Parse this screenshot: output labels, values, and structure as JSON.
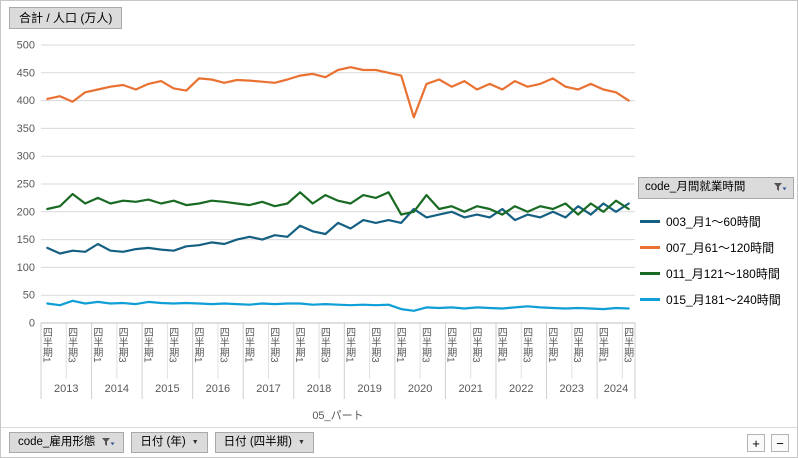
{
  "values_button_label": "合計 / 人口 (万人)",
  "icons": {
    "dropdown_arrow": "▼"
  },
  "legend": {
    "header_label": "code_月間就業時間",
    "items": [
      {
        "label": "003_月1～60時間",
        "color": "#156082"
      },
      {
        "label": "007_月61～120時間",
        "color": "#E97132"
      },
      {
        "label": "011_月121～180時間",
        "color": "#196B24"
      },
      {
        "label": "015_月181～240時間",
        "color": "#0F9ED5"
      }
    ]
  },
  "footer": {
    "field_button_label": "code_雇用形態",
    "year_button_label": "日付 (年)",
    "quarter_button_label": "日付 (四半期)",
    "expand_button_label": "+",
    "collapse_button_label": "−"
  },
  "chart_data": {
    "type": "line",
    "title": "合計 / 人口 (万人)",
    "xlabel": "05_パート",
    "ylabel": "",
    "ylim": [
      0,
      500
    ],
    "yticks": [
      0,
      50,
      100,
      150,
      200,
      250,
      300,
      350,
      400,
      450,
      500
    ],
    "grid": true,
    "legend_position": "right",
    "years": [
      2013,
      2014,
      2015,
      2016,
      2017,
      2018,
      2019,
      2020,
      2021,
      2022,
      2023,
      2024
    ],
    "quarters_per_year": [
      4,
      4,
      4,
      4,
      4,
      4,
      4,
      4,
      4,
      4,
      4,
      3
    ],
    "quarter_label_prefix": "四半期",
    "quarter_labels_shown": [
      1,
      3
    ],
    "series": [
      {
        "name": "003_月1～60時間",
        "color": "#156082",
        "values": [
          135,
          125,
          130,
          128,
          142,
          130,
          128,
          133,
          135,
          132,
          130,
          138,
          140,
          145,
          142,
          150,
          155,
          150,
          158,
          155,
          175,
          165,
          160,
          180,
          170,
          185,
          180,
          185,
          180,
          205,
          190,
          195,
          200,
          190,
          195,
          190,
          205,
          185,
          195,
          190,
          200,
          190,
          210,
          195,
          215,
          200,
          215
        ]
      },
      {
        "name": "007_月61～120時間",
        "color": "#E97132",
        "values": [
          403,
          408,
          398,
          415,
          420,
          425,
          428,
          420,
          430,
          435,
          422,
          418,
          440,
          438,
          432,
          437,
          436,
          434,
          432,
          438,
          445,
          448,
          442,
          455,
          460,
          455,
          455,
          450,
          445,
          370,
          430,
          438,
          425,
          435,
          420,
          430,
          420,
          435,
          425,
          430,
          440,
          425,
          420,
          430,
          420,
          415,
          400
        ]
      },
      {
        "name": "011_月121～180時間",
        "color": "#196B24",
        "values": [
          205,
          210,
          232,
          215,
          225,
          215,
          220,
          218,
          222,
          215,
          220,
          212,
          215,
          220,
          218,
          215,
          212,
          218,
          210,
          215,
          235,
          215,
          230,
          220,
          215,
          230,
          225,
          235,
          195,
          200,
          230,
          205,
          210,
          200,
          210,
          205,
          195,
          210,
          200,
          210,
          205,
          215,
          195,
          215,
          200,
          220,
          205
        ]
      },
      {
        "name": "015_月181～240時間",
        "color": "#0F9ED5",
        "values": [
          35,
          32,
          40,
          35,
          38,
          35,
          36,
          34,
          38,
          36,
          35,
          36,
          35,
          34,
          35,
          34,
          33,
          35,
          34,
          35,
          35,
          33,
          34,
          33,
          32,
          33,
          32,
          33,
          25,
          22,
          28,
          27,
          28,
          26,
          28,
          27,
          26,
          28,
          30,
          28,
          27,
          26,
          27,
          26,
          25,
          27,
          26
        ]
      }
    ]
  }
}
